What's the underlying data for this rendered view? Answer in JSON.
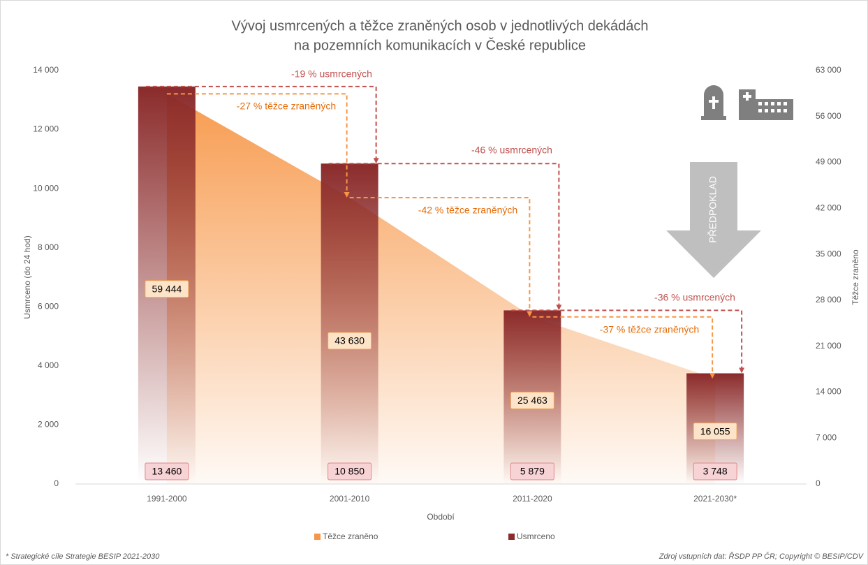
{
  "chart_data": {
    "type": "combo",
    "title": [
      "Vývoj usmrcených a těžce zraněných osob v jednotlivých dekádách",
      "na pozemních komunikacích v České republice"
    ],
    "x_label": "Období",
    "y_label": "Usmrceno (do 24 hod)",
    "y2_label": "Těžce  zraněno",
    "categories": [
      "1991-2000",
      "2001-2010",
      "2011-2020",
      "2021-2030*"
    ],
    "series": [
      {
        "name": "Usmrceno",
        "kind": "bar",
        "color": "#8b2b2b",
        "values": [
          13460,
          10850,
          5879,
          3748
        ],
        "value_labels": [
          "13 460",
          "10 850",
          "5 879",
          "3 748"
        ]
      },
      {
        "name": "Těžce zraněno",
        "kind": "area",
        "axis": "y2",
        "color": "#f79646",
        "values": [
          59444,
          43630,
          25463,
          16055
        ],
        "value_labels": [
          "59 444",
          "43 630",
          "25 463",
          "16 055"
        ]
      }
    ],
    "ylim": [
      0,
      14000
    ],
    "yticks": [
      0,
      {
        "value": 2000,
        "label": "2 000"
      },
      {
        "value": 4000,
        "label": "4 000"
      },
      {
        "value": 6000,
        "label": "6 000"
      },
      {
        "value": 8000,
        "label": "8 000"
      },
      {
        "value": 10000,
        "label": "10 000"
      },
      {
        "value": 12000,
        "label": "12 000"
      },
      {
        "value": 14000,
        "label": "14 000"
      }
    ],
    "y2lim": [
      0,
      63000
    ],
    "y2ticks": [
      0,
      {
        "value": 7000,
        "label": "7 000"
      },
      {
        "value": 14000,
        "label": "14 000"
      },
      {
        "value": 21000,
        "label": "21 000"
      },
      {
        "value": 28000,
        "label": "28 000"
      },
      {
        "value": 35000,
        "label": "35 000"
      },
      {
        "value": 42000,
        "label": "42 000"
      },
      {
        "value": 49000,
        "label": "49 000"
      },
      {
        "value": 56000,
        "label": "56 000"
      },
      {
        "value": 63000,
        "label": "63 000"
      }
    ],
    "annotations": {
      "killed": [
        "-19 % usmrcených",
        "-46 % usmrcených",
        "-36 % usmrcených"
      ],
      "injured": [
        "-27 % těžce zraněných",
        "-42 % těžce zraněných",
        "-37 % těžce zraněných"
      ],
      "forecast": "PŘEDPOKLAD"
    },
    "grid": false,
    "footnote": "* Strategické cíle Strategie BESIP 2021-2030",
    "source": "Zdroj vstupních dat: ŘSDP PP ČR; Copyright © BESIP/CDV"
  }
}
